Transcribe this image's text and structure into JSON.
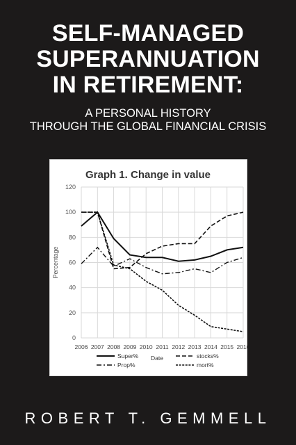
{
  "cover": {
    "title_lines": [
      "SELF-MANAGED",
      "SUPERANNUATION",
      "IN RETIREMENT:"
    ],
    "subtitle_lines": [
      "A PERSONAL HISTORY",
      "THROUGH THE GLOBAL FINANCIAL CRISIS"
    ],
    "author": "ROBERT T. GEMMELL",
    "background_color": "#1c1a1a",
    "text_color": "#ffffff"
  },
  "chart_data": {
    "type": "line",
    "title": "Graph 1. Change in value",
    "xlabel": "Date",
    "ylabel": "Percentage",
    "x": [
      2006,
      2007,
      2008,
      2009,
      2010,
      2011,
      2012,
      2013,
      2014,
      2015,
      2016
    ],
    "ylim": [
      0,
      120
    ],
    "yticks": [
      0,
      20,
      40,
      60,
      80,
      100,
      120
    ],
    "grid": true,
    "legend_position": "bottom",
    "series": [
      {
        "name": "Super%",
        "style": "solid",
        "values": [
          89,
          100,
          79,
          66,
          64,
          64,
          61,
          62,
          65,
          70,
          72
        ]
      },
      {
        "name": "stocks%",
        "style": "dashed",
        "values": [
          100,
          100,
          55,
          56,
          67,
          73,
          75,
          75,
          89,
          97,
          100
        ]
      },
      {
        "name": "Prop%",
        "style": "dashdot",
        "values": [
          59,
          72,
          57,
          63,
          56,
          51,
          52,
          55,
          52,
          60,
          64
        ]
      },
      {
        "name": "mort%",
        "style": "dotted",
        "values": [
          100,
          100,
          58,
          55,
          45,
          38,
          26,
          18,
          9,
          7,
          5
        ]
      }
    ]
  }
}
